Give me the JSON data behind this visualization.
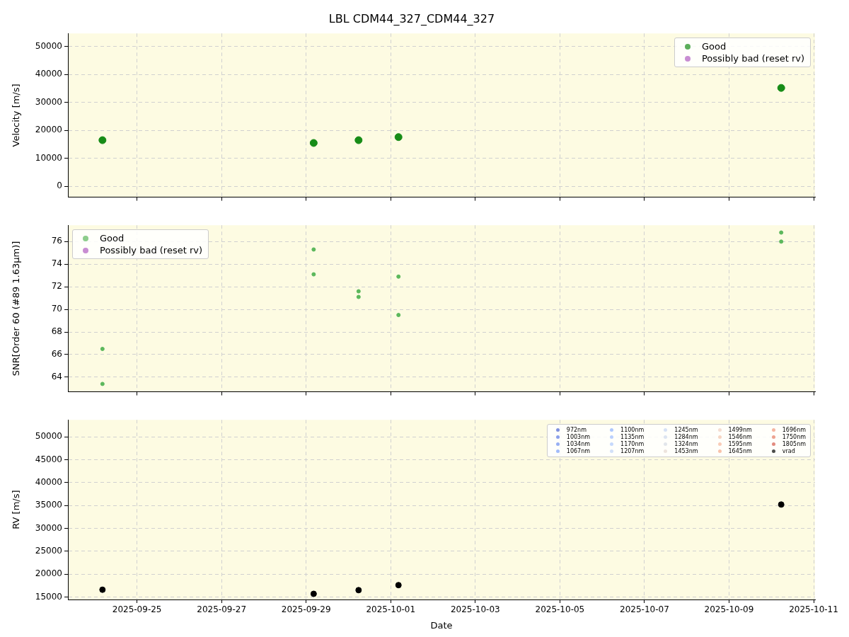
{
  "chart_data": [
    {
      "type": "scatter",
      "title": "LBL CDM44_327_CDM44_327",
      "ylabel": "Velocity [m/s]",
      "xlim": [
        "2025-09-23T08:48",
        "2025-10-11T00:48"
      ],
      "xticks": [
        "2025-09-25",
        "2025-09-27",
        "2025-09-29",
        "2025-10-01",
        "2025-10-03",
        "2025-10-05",
        "2025-10-07",
        "2025-10-09",
        "2025-10-11"
      ],
      "ylim": [
        -3900,
        54700
      ],
      "yticks": [
        0,
        10000,
        20000,
        30000,
        40000,
        50000
      ],
      "grid": true,
      "legend": "top right",
      "marker": "circle",
      "tick_labels": "y",
      "series": [
        {
          "name": "Good",
          "color": "#178c17",
          "x": [
            "2025-09-24T04:24",
            "2025-09-29T04:16",
            "2025-09-30T05:45",
            "2025-10-01T04:24",
            "2025-10-10T05:36"
          ],
          "values": [
            16500,
            15500,
            16500,
            17600,
            35200
          ]
        },
        {
          "name": "Possibly bad (reset rv)",
          "color": "#b05cc0"
        }
      ]
    },
    {
      "type": "scatter",
      "ylabel": "SNR[Order 60 (#89 1.63μm)]",
      "xlim": [
        "2025-09-23T08:48",
        "2025-10-11T00:48"
      ],
      "xticks": [
        "2025-09-25",
        "2025-09-27",
        "2025-09-29",
        "2025-10-01",
        "2025-10-03",
        "2025-10-05",
        "2025-10-07",
        "2025-10-09",
        "2025-10-11"
      ],
      "ylim": [
        62.7,
        77.45
      ],
      "yticks": [
        64,
        66,
        68,
        70,
        72,
        74,
        76
      ],
      "grid": true,
      "legend": "top left",
      "marker": "circle",
      "tick_labels": "y",
      "series": [
        {
          "name": "Good",
          "color": "#5cb85c",
          "x": [
            "2025-09-24T04:24",
            "2025-09-24T04:24",
            "2025-09-29T04:16",
            "2025-09-29T04:16",
            "2025-09-30T05:45",
            "2025-09-30T05:45",
            "2025-10-01T04:24",
            "2025-10-01T04:24",
            "2025-10-10T05:36",
            "2025-10-10T05:36"
          ],
          "values": [
            66.5,
            63.4,
            75.3,
            73.1,
            71.6,
            71.1,
            72.9,
            69.5,
            76.8,
            76.0
          ]
        },
        {
          "name": "Possibly bad (reset rv)",
          "color": "#b05cc0"
        }
      ]
    },
    {
      "type": "scatter",
      "xlabel": "Date",
      "ylabel": "RV [m/s]",
      "xlim": [
        "2025-09-23T08:48",
        "2025-10-11T00:48"
      ],
      "xticks": [
        "2025-09-25",
        "2025-09-27",
        "2025-09-29",
        "2025-10-01",
        "2025-10-03",
        "2025-10-05",
        "2025-10-07",
        "2025-10-09",
        "2025-10-11"
      ],
      "ylim": [
        14460,
        53700
      ],
      "yticks": [
        15000,
        20000,
        25000,
        30000,
        35000,
        40000,
        45000,
        50000
      ],
      "grid": true,
      "legend": "top right",
      "marker": "circle",
      "series": [
        {
          "name": "972nm",
          "color": "#4a63d3"
        },
        {
          "name": "1003nm",
          "color": "#5a78e4"
        },
        {
          "name": "1034nm",
          "color": "#6b8df0"
        },
        {
          "name": "1067nm",
          "color": "#7b9ff9"
        },
        {
          "name": "1100nm",
          "color": "#8db0fe"
        },
        {
          "name": "1135nm",
          "color": "#9ebeff"
        },
        {
          "name": "1170nm",
          "color": "#aec9fc"
        },
        {
          "name": "1207nm",
          "color": "#bfd3f6"
        },
        {
          "name": "1245nm",
          "color": "#c6d6f2"
        },
        {
          "name": "1284nm",
          "color": "#cdd9ec"
        },
        {
          "name": "1324nm",
          "color": "#d6dce4"
        },
        {
          "name": "1453nm",
          "color": "#e5d8d1"
        },
        {
          "name": "1499nm",
          "color": "#efcfbf"
        },
        {
          "name": "1546nm",
          "color": "#f4c5ad"
        },
        {
          "name": "1595nm",
          "color": "#f6b89c"
        },
        {
          "name": "1645nm",
          "color": "#f5a98b"
        },
        {
          "name": "1696nm",
          "color": "#f1977a"
        },
        {
          "name": "1750nm",
          "color": "#e67a62"
        },
        {
          "name": "1805nm",
          "color": "#d65a4a"
        },
        {
          "name": "vrad",
          "color": "#000000",
          "x": [
            "2025-09-24T04:24",
            "2025-09-29T04:16",
            "2025-09-30T05:45",
            "2025-10-01T04:24",
            "2025-10-10T05:36"
          ],
          "values": [
            16600,
            15700,
            16500,
            17600,
            35200
          ]
        }
      ]
    }
  ]
}
